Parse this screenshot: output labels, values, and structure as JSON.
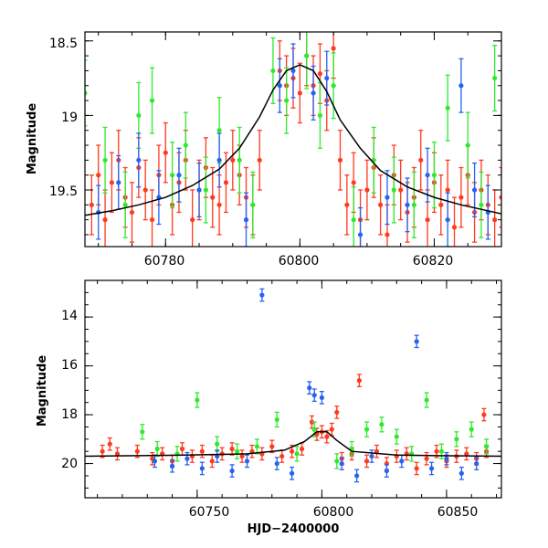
{
  "chart_data": [
    {
      "type": "scatter",
      "panel": "top",
      "title": "",
      "xlabel": "",
      "ylabel": "Magnitude",
      "xlim": [
        60768,
        60830
      ],
      "ylim": [
        19.88,
        18.44
      ],
      "y_inverted": true,
      "x_ticks": [
        60780,
        60800,
        60820
      ],
      "y_ticks": [
        18.5,
        19,
        19.5
      ],
      "grid": false,
      "legend": "none",
      "model_curve": {
        "description_free": true,
        "x": [
          60768,
          60772,
          60776,
          60780,
          60784,
          60788,
          60791,
          60794,
          60796,
          60798,
          60800,
          60802,
          60804,
          60806,
          60809,
          60812,
          60816,
          60820,
          60824,
          60828,
          60830
        ],
        "y": [
          19.67,
          19.64,
          19.6,
          19.55,
          19.47,
          19.36,
          19.22,
          19.01,
          18.83,
          18.7,
          18.66,
          18.7,
          18.84,
          19.03,
          19.22,
          19.37,
          19.48,
          19.55,
          19.6,
          19.64,
          19.66
        ]
      },
      "series": [
        {
          "color": "#ff3a1f",
          "x": [
            60769,
            60770,
            60771,
            60772,
            60773,
            60774,
            60775,
            60776,
            60777,
            60778,
            60779,
            60780,
            60781,
            60782,
            60783,
            60784,
            60785,
            60786,
            60787,
            60788,
            60789,
            60790,
            60791,
            60792,
            60793,
            60794,
            60797,
            60798,
            60799,
            60800,
            60801,
            60802,
            60803,
            60804,
            60805,
            60806,
            60807,
            60808,
            60809,
            60810,
            60811,
            60812,
            60813,
            60814,
            60815,
            60816,
            60817,
            60818,
            60819,
            60820,
            60821,
            60822,
            60823,
            60824,
            60825,
            60826,
            60827,
            60828,
            60829,
            60830
          ],
          "y": [
            19.6,
            19.4,
            19.7,
            19.45,
            19.3,
            19.55,
            19.65,
            19.35,
            19.5,
            19.7,
            19.4,
            19.25,
            19.6,
            19.45,
            19.3,
            19.7,
            19.5,
            19.35,
            19.55,
            19.6,
            19.45,
            19.3,
            19.4,
            19.55,
            19.6,
            19.3,
            18.7,
            18.8,
            18.75,
            18.85,
            18.6,
            18.8,
            18.72,
            18.9,
            18.55,
            19.3,
            19.6,
            19.45,
            19.7,
            19.5,
            19.35,
            19.6,
            19.8,
            19.4,
            19.5,
            19.65,
            19.55,
            19.3,
            19.7,
            19.45,
            19.6,
            19.5,
            19.75,
            19.55,
            19.4,
            19.65,
            19.5,
            19.6,
            19.7,
            19.55
          ],
          "yerr": 0.2
        },
        {
          "color": "#2eea2e",
          "x": [
            60768,
            60771,
            60774,
            60776,
            60778,
            60781,
            60783,
            60786,
            60788,
            60791,
            60793,
            60796,
            60798,
            60801,
            60803,
            60805,
            60808,
            60811,
            60814,
            60817,
            60820,
            60822,
            60825,
            60827,
            60829
          ],
          "y": [
            18.85,
            19.3,
            19.6,
            19.0,
            18.9,
            19.4,
            19.2,
            19.5,
            19.1,
            19.3,
            19.6,
            18.7,
            18.9,
            18.6,
            19.0,
            18.8,
            19.7,
            19.3,
            19.5,
            19.6,
            19.4,
            18.95,
            19.2,
            19.6,
            18.75
          ],
          "yerr": 0.22
        },
        {
          "color": "#2563f0",
          "x": [
            60770,
            60773,
            60776,
            60779,
            60782,
            60785,
            60788,
            60792,
            60797,
            60799,
            60802,
            60804,
            60809,
            60813,
            60816,
            60819,
            60822,
            60824,
            60826,
            60828
          ],
          "y": [
            19.65,
            19.45,
            19.3,
            19.55,
            19.4,
            19.5,
            19.3,
            19.7,
            18.8,
            18.7,
            18.85,
            18.75,
            19.8,
            19.55,
            19.6,
            19.4,
            19.7,
            18.8,
            19.5,
            19.65
          ],
          "yerr": 0.18
        }
      ]
    },
    {
      "type": "scatter",
      "panel": "bottom",
      "title": "",
      "xlabel": "HJD−2400000",
      "ylabel": "Magnitude",
      "xlim": [
        60705,
        60872
      ],
      "ylim": [
        21.4,
        12.5
      ],
      "y_inverted": true,
      "x_ticks": [
        60750,
        60800,
        60850
      ],
      "y_ticks": [
        14,
        16,
        18,
        20
      ],
      "grid": false,
      "legend": "none",
      "model_curve": {
        "x": [
          60705,
          60740,
          60770,
          60785,
          60793,
          60798,
          60802,
          60806,
          60812,
          60830,
          60850,
          60872
        ],
        "y": [
          19.7,
          19.66,
          19.6,
          19.45,
          19.1,
          18.7,
          18.7,
          19.05,
          19.5,
          19.65,
          19.68,
          19.7
        ]
      },
      "series": [
        {
          "color": "#ff3a1f",
          "x": [
            60712,
            60715,
            60718,
            60726,
            60732,
            60736,
            60740,
            60744,
            60748,
            60752,
            60756,
            60760,
            60764,
            60768,
            60772,
            60776,
            60780,
            60784,
            60788,
            60792,
            60796,
            60798,
            60800,
            60802,
            60804,
            60806,
            60808,
            60812,
            60815,
            60818,
            60822,
            60826,
            60830,
            60834,
            60838,
            60842,
            60846,
            60850,
            60854,
            60858,
            60862,
            60865,
            60866
          ],
          "y": [
            19.5,
            19.2,
            19.6,
            19.5,
            19.8,
            19.6,
            19.9,
            19.4,
            19.7,
            19.5,
            19.9,
            19.6,
            19.4,
            19.7,
            19.5,
            19.6,
            19.3,
            19.7,
            19.5,
            19.4,
            18.3,
            18.8,
            18.7,
            18.9,
            18.6,
            17.9,
            19.8,
            19.6,
            16.6,
            19.9,
            19.5,
            20.0,
            19.7,
            19.6,
            20.2,
            19.8,
            19.5,
            19.9,
            19.7,
            19.6,
            19.8,
            18.0,
            19.5
          ],
          "yerr": 0.25
        },
        {
          "color": "#2eea2e",
          "x": [
            60728,
            60734,
            60742,
            60750,
            60758,
            60766,
            60774,
            60782,
            60790,
            60797,
            60806,
            60812,
            60818,
            60824,
            60830,
            60836,
            60842,
            60848,
            60854,
            60860,
            60866
          ],
          "y": [
            18.7,
            19.4,
            19.6,
            17.4,
            19.2,
            19.5,
            19.3,
            18.2,
            19.6,
            18.6,
            19.9,
            19.4,
            18.6,
            18.4,
            18.9,
            19.6,
            17.4,
            19.5,
            19.0,
            18.6,
            19.3
          ],
          "yerr": 0.3
        },
        {
          "color": "#2563f0",
          "x": [
            60733,
            60740,
            60746,
            60752,
            60758,
            60764,
            60770,
            60776,
            60782,
            60788,
            60795,
            60797,
            60800,
            60808,
            60814,
            60820,
            60826,
            60832,
            60838,
            60844,
            60850,
            60856,
            60862
          ],
          "y": [
            19.9,
            20.1,
            19.8,
            20.2,
            19.7,
            20.3,
            19.9,
            13.1,
            20.0,
            20.4,
            16.9,
            17.2,
            17.3,
            20.0,
            20.5,
            19.7,
            20.3,
            19.9,
            15.0,
            20.2,
            19.8,
            20.4,
            20.0
          ],
          "yerr": 0.25
        }
      ]
    }
  ],
  "panels": {
    "top": {
      "ylabel": "Magnitude",
      "xtick_labels": [
        "60780",
        "60800",
        "60820"
      ],
      "ytick_labels": [
        "18.5",
        "19",
        "19.5"
      ]
    },
    "bottom": {
      "ylabel": "Magnitude",
      "xlabel": "HJD−2400000",
      "xtick_labels": [
        "60750",
        "60800",
        "60850"
      ],
      "ytick_labels": [
        "14",
        "16",
        "18",
        "20"
      ]
    }
  }
}
